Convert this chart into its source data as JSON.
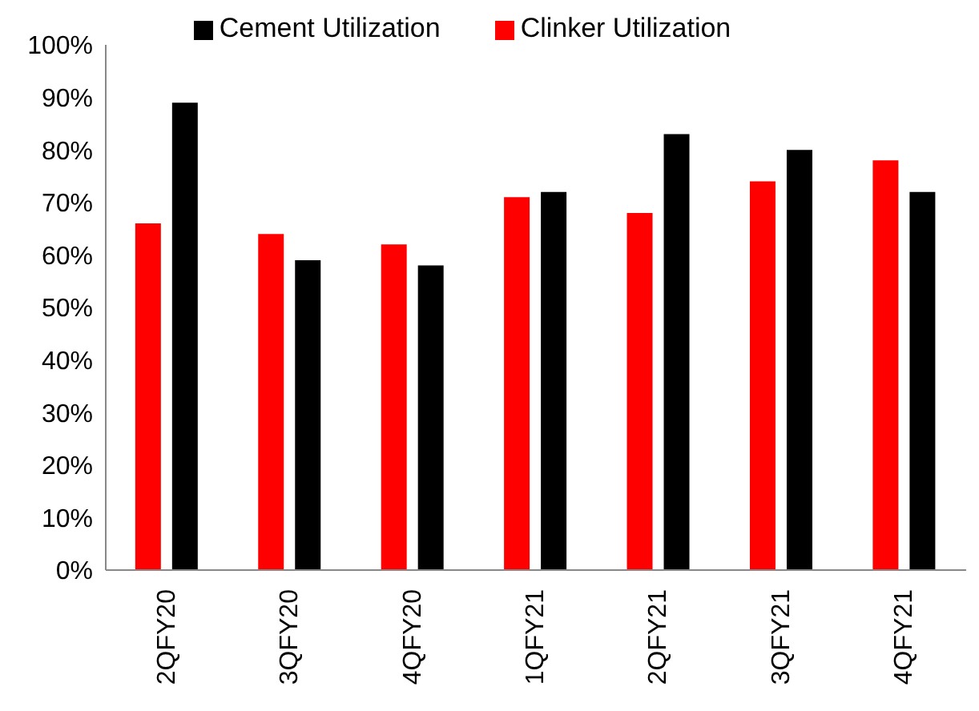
{
  "chart_data": {
    "type": "bar",
    "categories": [
      "2QFY20",
      "3QFY20",
      "4QFY20",
      "1QFY21",
      "2QFY21",
      "3QFY21",
      "4QFY21"
    ],
    "series": [
      {
        "name": "Clinker Utilization",
        "color": "#ff0000",
        "values": [
          66,
          64,
          62,
          71,
          68,
          74,
          78
        ]
      },
      {
        "name": "Cement Utilization",
        "color": "#000000",
        "values": [
          89,
          59,
          58,
          72,
          83,
          80,
          72
        ]
      }
    ],
    "ylim": [
      0,
      100
    ],
    "yticks": [
      {
        "value": 0,
        "label": "0%"
      },
      {
        "value": 10,
        "label": "10%"
      },
      {
        "value": 20,
        "label": "20%"
      },
      {
        "value": 30,
        "label": "30%"
      },
      {
        "value": 40,
        "label": "40%"
      },
      {
        "value": 50,
        "label": "50%"
      },
      {
        "value": 60,
        "label": "60%"
      },
      {
        "value": 70,
        "label": "70%"
      },
      {
        "value": 80,
        "label": "80%"
      },
      {
        "value": 90,
        "label": "90%"
      },
      {
        "value": 100,
        "label": "100%"
      }
    ],
    "grid": false,
    "legend": "top"
  }
}
